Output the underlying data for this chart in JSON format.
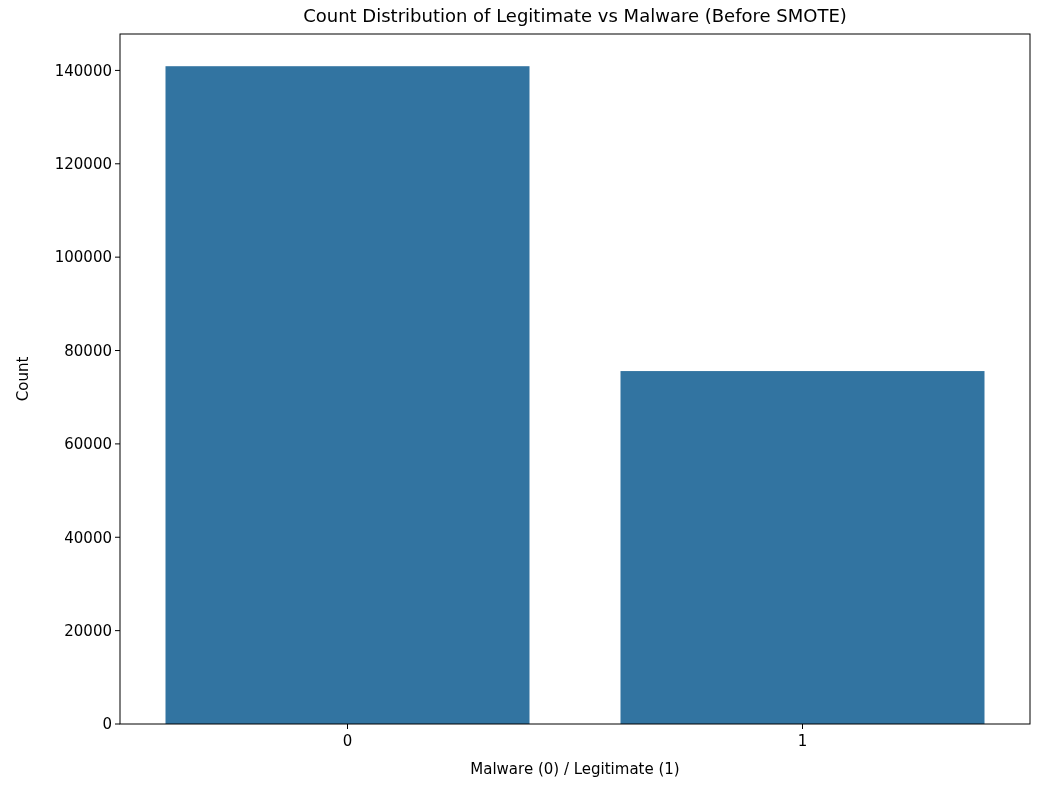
{
  "chart_data": {
    "type": "bar",
    "title": "Count Distribution of Legitimate vs Malware (Before SMOTE)",
    "xlabel": "Malware (0) / Legitimate (1)",
    "ylabel": "Count",
    "categories": [
      "0",
      "1"
    ],
    "values": [
      140900,
      75600
    ],
    "color": "#3274a1",
    "ylim": [
      0,
      147800
    ],
    "yticks": [
      0,
      20000,
      40000,
      60000,
      80000,
      100000,
      120000,
      140000
    ]
  }
}
